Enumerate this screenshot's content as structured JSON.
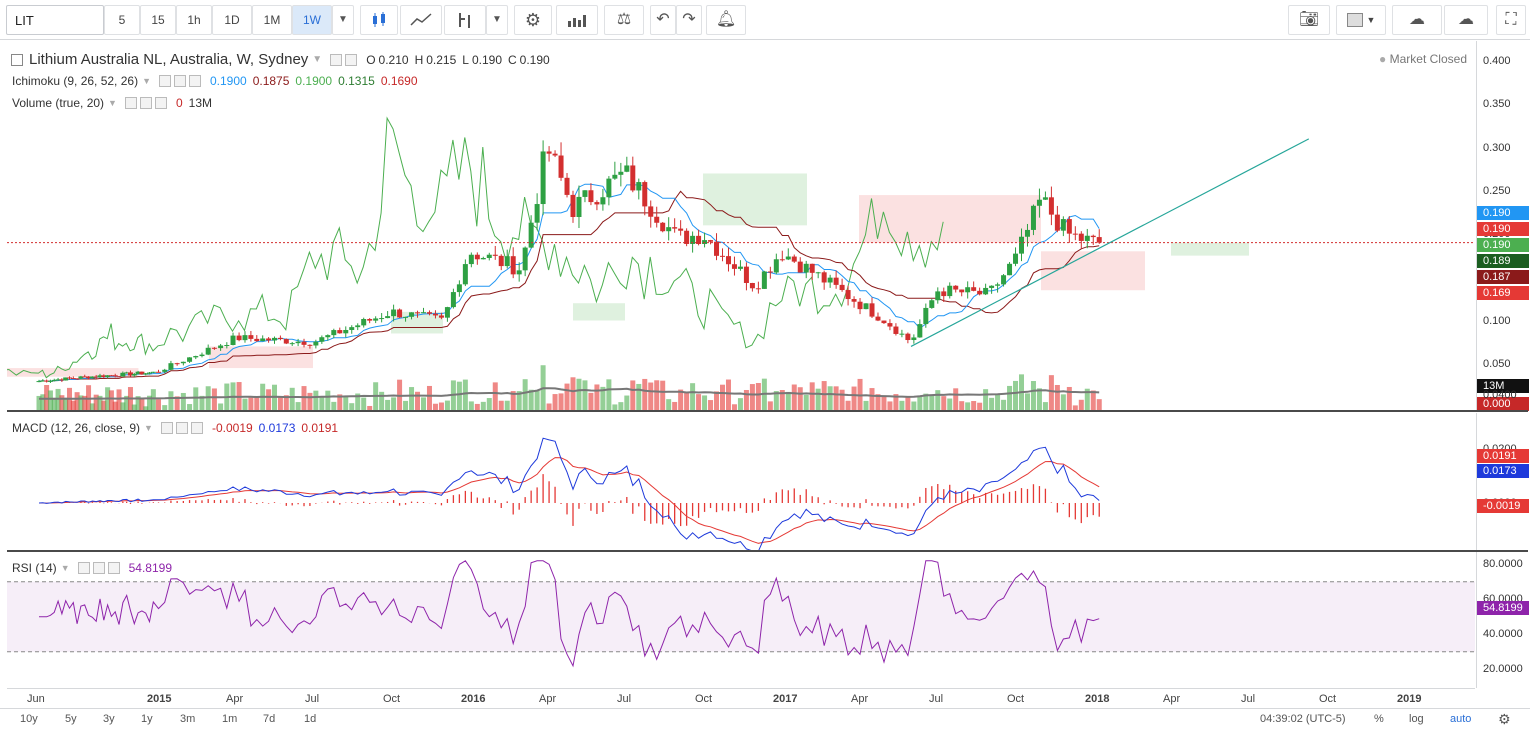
{
  "toolbar": {
    "symbol": "LIT",
    "intervals": [
      "5",
      "15",
      "1h",
      "1D",
      "1M",
      "1W"
    ],
    "active_interval": "1W"
  },
  "main": {
    "title": "Lithium Australia NL, Australia, W, Sydney",
    "ohlc": {
      "o_label": "O",
      "o": "0.210",
      "h_label": "H",
      "h": "0.215",
      "l_label": "L",
      "l": "0.190",
      "c_label": "C",
      "c": "0.190"
    },
    "market_status": "Market Closed",
    "ichimoku": {
      "label": "Ichimoku (9, 26, 52, 26)",
      "v1": "0.1900",
      "v2": "0.1875",
      "v3": "0.1900",
      "v4": "0.1315",
      "v5": "0.1690"
    },
    "volume": {
      "label": "Volume (true, 20)",
      "v1": "0",
      "v2": "13M"
    },
    "price_ticks": [
      "0.400",
      "0.350",
      "0.300",
      "0.250",
      "0.200",
      "0.150",
      "0.100",
      "0.050",
      "0.000"
    ],
    "badges": [
      {
        "text": "0.190",
        "color": "#2196f3"
      },
      {
        "text": "0.190",
        "color": "#e53935"
      },
      {
        "text": "0.190",
        "color": "#4caf50"
      },
      {
        "text": "0.189",
        "color": "#1b5e20"
      },
      {
        "text": "0.187",
        "color": "#8b1a1a"
      },
      {
        "text": "0.169",
        "color": "#e53935"
      }
    ],
    "volume_badge": "13M",
    "zero_badge": "0.000"
  },
  "macd": {
    "label": "MACD (12, 26, close, 9)",
    "v1": "-0.0019",
    "v2": "0.0173",
    "v3": "0.0191",
    "ticks": [
      "0.0400",
      "0.0200",
      "0.0000",
      "-0.0200"
    ],
    "badges": [
      {
        "text": "0.0191",
        "color": "#e53935"
      },
      {
        "text": "0.0173",
        "color": "#1e3adb"
      },
      {
        "text": "-0.0019",
        "color": "#e53935"
      }
    ]
  },
  "rsi": {
    "label": "RSI (14)",
    "value": "54.8199",
    "ticks": [
      "80.0000",
      "60.0000",
      "40.0000",
      "20.0000"
    ],
    "badge": "54.8199"
  },
  "time_axis": [
    "Jun",
    "2015",
    "Apr",
    "Jul",
    "Oct",
    "2016",
    "Apr",
    "Jul",
    "Oct",
    "2017",
    "Apr",
    "Jul",
    "Oct",
    "2018",
    "Apr",
    "Jul",
    "Oct",
    "2019"
  ],
  "ranges": [
    "10y",
    "5y",
    "3y",
    "1y",
    "3m",
    "1m",
    "7d",
    "1d"
  ],
  "status": {
    "clock": "04:39:02 (UTC-5)",
    "percent": "%",
    "log": "log",
    "auto": "auto"
  },
  "colors": {
    "up": "#26a69a",
    "up_candle": "#2ea043",
    "down_candle": "#d32f2f",
    "tenkan": "#2196f3",
    "kijun": "#8b1a1a",
    "span_a": "#4caf50",
    "span_b": "#e53935",
    "lagging": "#4caf50",
    "macd": "#1e3adb",
    "signal": "#e53935",
    "rsi": "#8e24aa",
    "trendline": "#26a69a"
  },
  "chart_data": {
    "type": "candlestick",
    "title": "Lithium Australia NL, Australia, W, Sydney",
    "y_range": [
      0.0,
      0.4
    ],
    "approx_close_path": [
      [
        "2014-06",
        0.03
      ],
      [
        "2014-09",
        0.035
      ],
      [
        "2015-01",
        0.04
      ],
      [
        "2015-04",
        0.08
      ],
      [
        "2015-07",
        0.075
      ],
      [
        "2015-10",
        0.11
      ],
      [
        "2015-12",
        0.1
      ],
      [
        "2016-01",
        0.18
      ],
      [
        "2016-03",
        0.16
      ],
      [
        "2016-04",
        0.3
      ],
      [
        "2016-05",
        0.23
      ],
      [
        "2016-07",
        0.27
      ],
      [
        "2016-09",
        0.195
      ],
      [
        "2016-10",
        0.2
      ],
      [
        "2016-12",
        0.14
      ],
      [
        "2017-01",
        0.18
      ],
      [
        "2017-03",
        0.14
      ],
      [
        "2017-05",
        0.1
      ],
      [
        "2017-06",
        0.075
      ],
      [
        "2017-07",
        0.135
      ],
      [
        "2017-09",
        0.13
      ],
      [
        "2017-10",
        0.17
      ],
      [
        "2017-11",
        0.24
      ],
      [
        "2017-12",
        0.2
      ],
      [
        "2018-01",
        0.19
      ]
    ]
  }
}
